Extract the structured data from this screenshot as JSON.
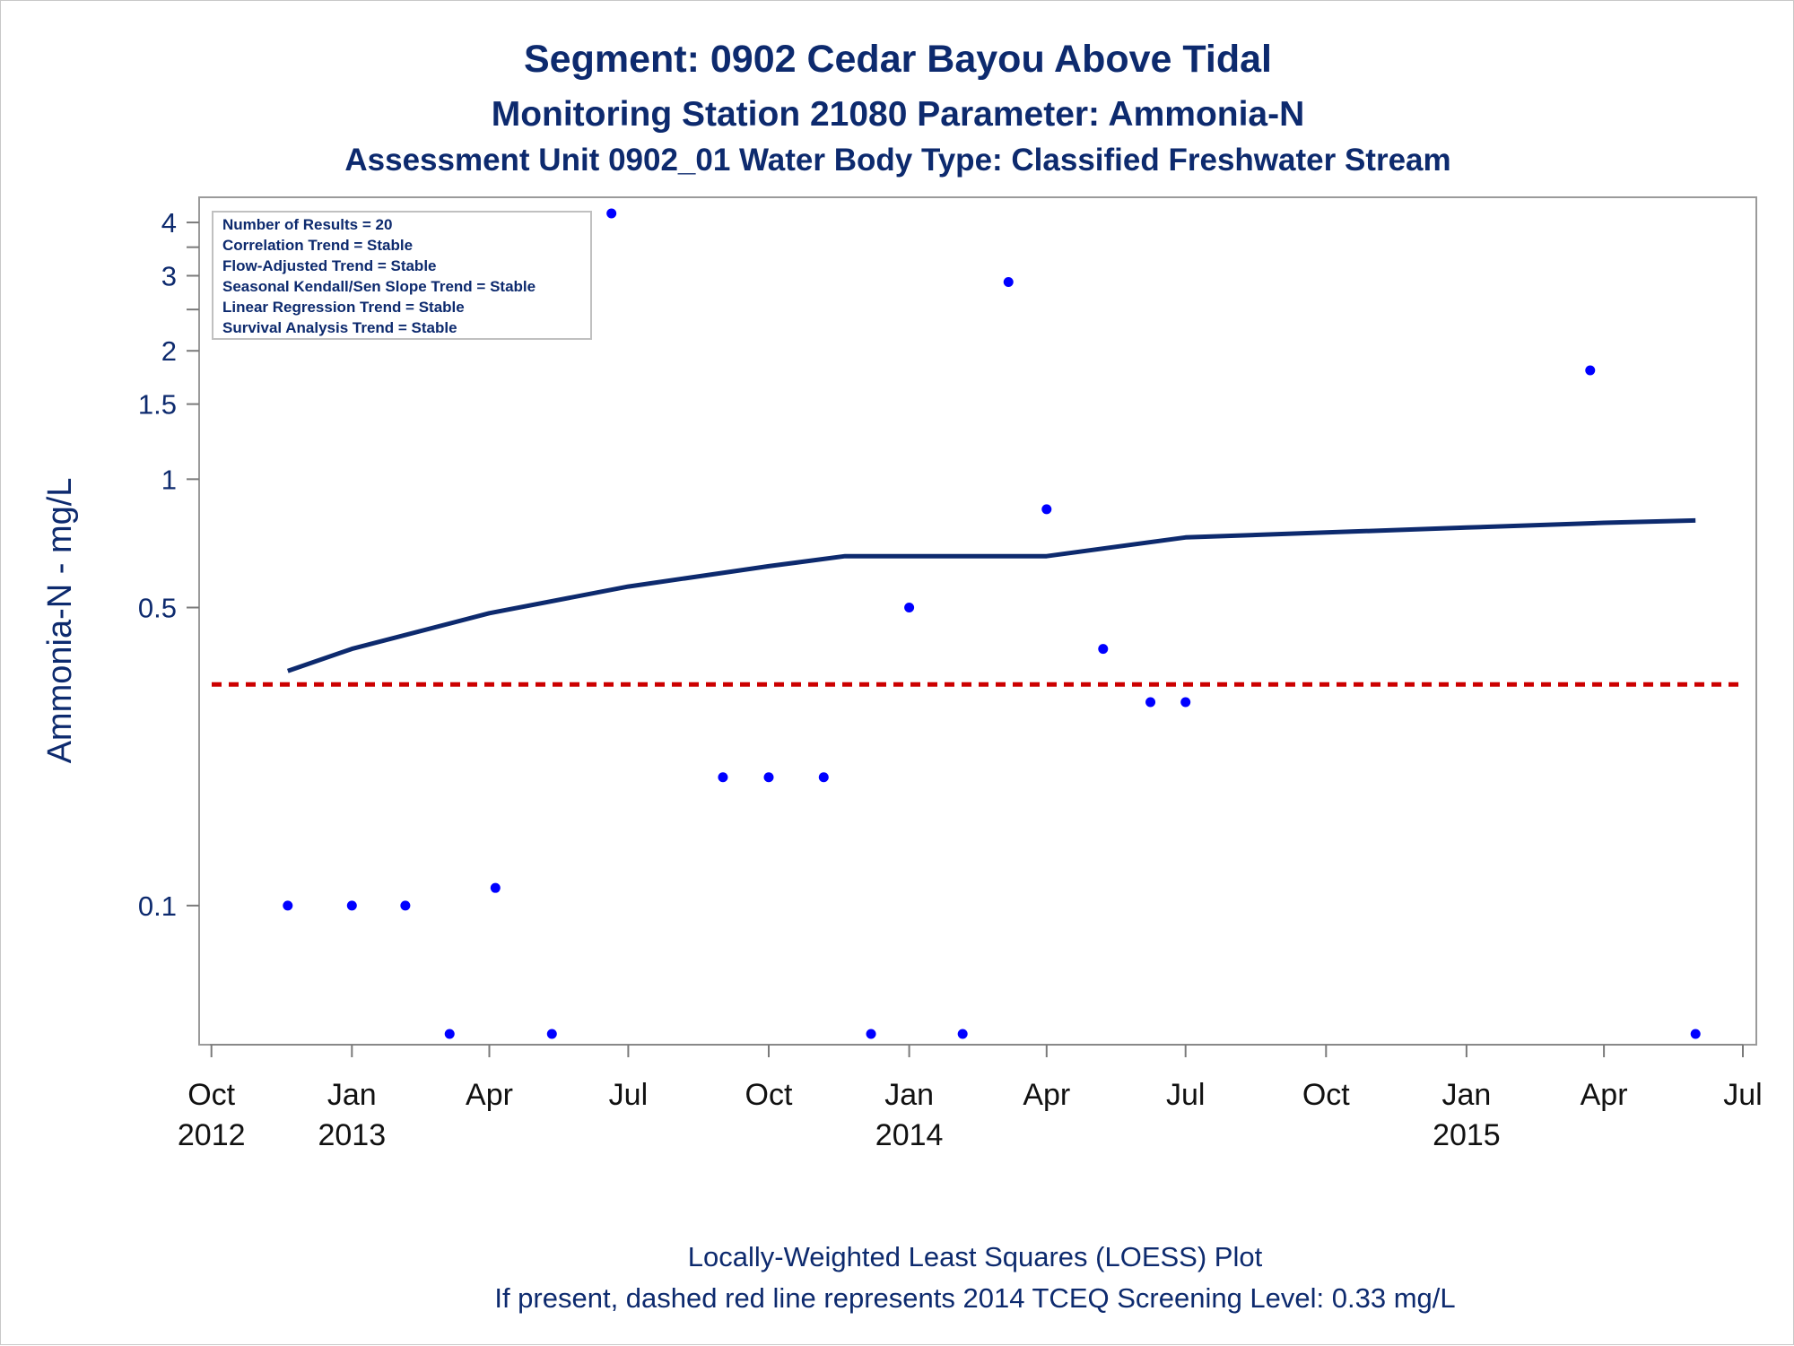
{
  "chart_data": {
    "type": "scatter",
    "title": "Segment: 0902  Cedar Bayou Above Tidal",
    "subtitle": "Monitoring Station 21080 Parameter: Ammonia-N",
    "subtitle2": "Assessment Unit 0902_01   Water Body Type: Classified Freshwater Stream",
    "ylabel": "Ammonia-N - mg/L",
    "y_scale": "log",
    "ylim": [
      0.05,
      4.2
    ],
    "x_range": [
      "2012-09-30",
      "2015-07-01"
    ],
    "x_ticks": [
      {
        "date": "2012-10-01",
        "month": "Oct",
        "year": "2012"
      },
      {
        "date": "2013-01-01",
        "month": "Jan",
        "year": "2013"
      },
      {
        "date": "2013-04-01",
        "month": "Apr",
        "year": ""
      },
      {
        "date": "2013-07-01",
        "month": "Jul",
        "year": ""
      },
      {
        "date": "2013-10-01",
        "month": "Oct",
        "year": ""
      },
      {
        "date": "2014-01-01",
        "month": "Jan",
        "year": "2014"
      },
      {
        "date": "2014-04-01",
        "month": "Apr",
        "year": ""
      },
      {
        "date": "2014-07-01",
        "month": "Jul",
        "year": ""
      },
      {
        "date": "2014-10-01",
        "month": "Oct",
        "year": ""
      },
      {
        "date": "2015-01-01",
        "month": "Jan",
        "year": "2015"
      },
      {
        "date": "2015-04-01",
        "month": "Apr",
        "year": ""
      },
      {
        "date": "2015-07-01",
        "month": "Jul",
        "year": ""
      }
    ],
    "y_ticks": [
      {
        "value": 0.1,
        "label": "0.1"
      },
      {
        "value": 0.5,
        "label": "0.5"
      },
      {
        "value": 1,
        "label": "1"
      },
      {
        "value": 1.5,
        "label": "1.5"
      },
      {
        "value": 2,
        "label": "2"
      },
      {
        "value": 3,
        "label": "3"
      },
      {
        "value": 4,
        "label": "4"
      }
    ],
    "y_minor_ticks": [
      2.5,
      3.5
    ],
    "series": [
      {
        "type": "scatter",
        "color": "#0000ff",
        "points": [
          {
            "x": "2012-11-20",
            "y": 0.1
          },
          {
            "x": "2013-01-01",
            "y": 0.1
          },
          {
            "x": "2013-02-05",
            "y": 0.1
          },
          {
            "x": "2013-03-06",
            "y": 0.05
          },
          {
            "x": "2013-04-05",
            "y": 0.11
          },
          {
            "x": "2013-05-12",
            "y": 0.05
          },
          {
            "x": "2013-06-20",
            "y": 4.2
          },
          {
            "x": "2013-09-01",
            "y": 0.2
          },
          {
            "x": "2013-10-01",
            "y": 0.2
          },
          {
            "x": "2013-11-06",
            "y": 0.2
          },
          {
            "x": "2013-12-07",
            "y": 0.05
          },
          {
            "x": "2014-01-01",
            "y": 0.5
          },
          {
            "x": "2014-02-05",
            "y": 0.05
          },
          {
            "x": "2014-03-07",
            "y": 2.9
          },
          {
            "x": "2014-04-01",
            "y": 0.85
          },
          {
            "x": "2014-05-08",
            "y": 0.4
          },
          {
            "x": "2014-06-08",
            "y": 0.3
          },
          {
            "x": "2014-07-01",
            "y": 0.3
          },
          {
            "x": "2015-03-23",
            "y": 1.8
          },
          {
            "x": "2015-05-31",
            "y": 0.05
          }
        ]
      },
      {
        "type": "line",
        "color": "#0d2a6e",
        "points": [
          {
            "x": "2012-11-20",
            "y": 0.355
          },
          {
            "x": "2013-01-01",
            "y": 0.4
          },
          {
            "x": "2013-04-01",
            "y": 0.485
          },
          {
            "x": "2013-07-01",
            "y": 0.56
          },
          {
            "x": "2013-10-01",
            "y": 0.625
          },
          {
            "x": "2013-11-20",
            "y": 0.66
          },
          {
            "x": "2014-04-01",
            "y": 0.66
          },
          {
            "x": "2014-07-01",
            "y": 0.73
          },
          {
            "x": "2014-10-01",
            "y": 0.75
          },
          {
            "x": "2015-01-01",
            "y": 0.77
          },
          {
            "x": "2015-04-01",
            "y": 0.79
          },
          {
            "x": "2015-05-31",
            "y": 0.8
          }
        ]
      }
    ],
    "reference_line": {
      "y": 0.33,
      "color": "#cc0000",
      "style": "dashed"
    },
    "inset_legend": [
      "Number of Results = 20",
      "Correlation Trend = Stable",
      "Flow-Adjusted Trend = Stable",
      "Seasonal Kendall/Sen Slope Trend = Stable",
      "Linear Regression Trend = Stable",
      "Survival Analysis Trend = Stable"
    ],
    "footnotes": [
      "Locally-Weighted Least Squares (LOESS) Plot",
      "If present, dashed red line represents 2014 TCEQ Screening Level: 0.33 mg/L"
    ],
    "grid": false,
    "legend_position": "top-left"
  }
}
